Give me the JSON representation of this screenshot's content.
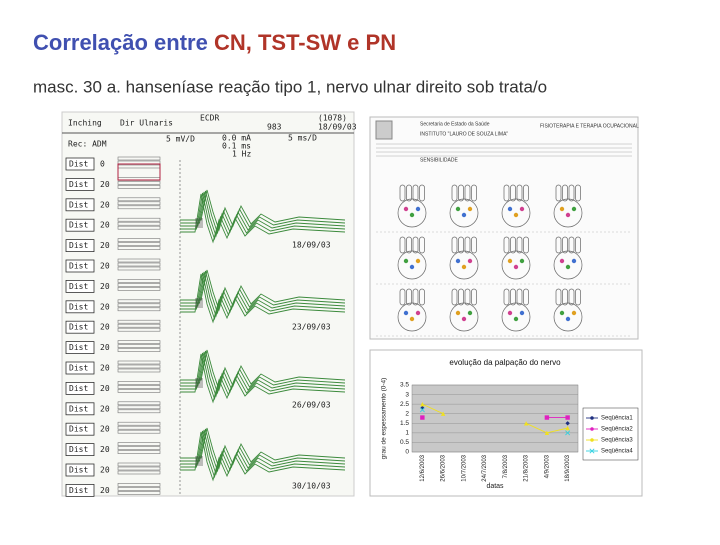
{
  "header": {
    "title_part1": "Correlação entre ",
    "title_part2": "CN, TST-SW e PN",
    "subtitle": "masc. 30 a. hanseníase reação tipo 1, nervo ulnar direito sob trata/o"
  },
  "emg": {
    "header": [
      "Inching",
      "Dir Ulnaris",
      "ECDR",
      "(1078)",
      "983",
      "18/09/03"
    ],
    "rec": "Rec: ADM",
    "settings": [
      "5 mV/D",
      "0.0 mA",
      "0.1 ms",
      "1 Hz",
      "5 ms/D"
    ],
    "rows": [
      {
        "label": "Dist",
        "value": "0"
      },
      {
        "label": "Dist",
        "value": "20"
      },
      {
        "label": "Dist",
        "value": "20"
      },
      {
        "label": "Dist",
        "value": "20"
      },
      {
        "label": "Dist",
        "value": "20"
      },
      {
        "label": "Dist",
        "value": "20"
      },
      {
        "label": "Dist",
        "value": "20"
      },
      {
        "label": "Dist",
        "value": "20"
      },
      {
        "label": "Dist",
        "value": "20"
      },
      {
        "label": "Dist",
        "value": "20"
      },
      {
        "label": "Dist",
        "value": "20"
      },
      {
        "label": "Dist",
        "value": "20"
      },
      {
        "label": "Dist",
        "value": "20"
      },
      {
        "label": "Dist",
        "value": "20"
      },
      {
        "label": "Dist",
        "value": "20"
      },
      {
        "label": "Dist",
        "value": "20"
      },
      {
        "label": "Dist",
        "value": "20"
      }
    ],
    "dates": [
      "18/09/03",
      "23/09/03",
      "26/09/03",
      "30/10/03"
    ]
  },
  "form": {
    "lines": [
      "Secretaria de Estado da Saúde",
      "FISIOTERAPIA E TERAPIA OCUPACIONAL",
      "INSTITUTO \"LAURO DE SOUZA LIMA\"",
      "SENSIBILIDADE"
    ]
  },
  "chart_data": {
    "type": "line",
    "title": "evolução da palpação do nervo",
    "y_label": "grau de espessamento (0-4)",
    "x_label": "datas",
    "categories": [
      "12/6/2003",
      "26/6/2003",
      "10/7/2003",
      "24/7/2003",
      "7/8/2003",
      "21/8/2003",
      "4/9/2003",
      "18/9/2003"
    ],
    "ylim": [
      0,
      3.5
    ],
    "yticks": [
      0,
      0.5,
      1,
      1.5,
      2,
      2.5,
      3,
      3.5
    ],
    "grid": true,
    "series": [
      {
        "name": "Seqüência1",
        "color": "#1f2f80",
        "marker": "diamond",
        "values": [
          2.3,
          null,
          null,
          null,
          null,
          null,
          null,
          1.5
        ]
      },
      {
        "name": "Seqüência2",
        "color": "#e020c0",
        "marker": "square",
        "values": [
          1.8,
          null,
          null,
          null,
          null,
          null,
          1.8,
          1.8
        ]
      },
      {
        "name": "Seqüência3",
        "color": "#f0e020",
        "marker": "triangle",
        "values": [
          2.5,
          2,
          null,
          null,
          null,
          1.5,
          1,
          1.25
        ]
      },
      {
        "name": "Seqüência4",
        "color": "#30d0e0",
        "marker": "x",
        "values": [
          2.2,
          null,
          null,
          null,
          null,
          null,
          null,
          1
        ]
      }
    ]
  }
}
